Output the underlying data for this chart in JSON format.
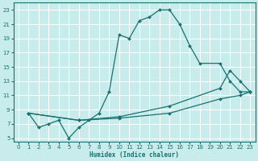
{
  "xlabel": "Humidex (Indice chaleur)",
  "bg_color": "#c8ecec",
  "line_color": "#1a7070",
  "grid_color": "#ffffff",
  "xlim": [
    -0.5,
    23.5
  ],
  "ylim": [
    4.5,
    24
  ],
  "yticks": [
    5,
    7,
    9,
    11,
    13,
    15,
    17,
    19,
    21,
    23
  ],
  "xticks": [
    0,
    1,
    2,
    3,
    4,
    5,
    6,
    7,
    8,
    9,
    10,
    11,
    12,
    13,
    14,
    15,
    16,
    17,
    18,
    19,
    20,
    21,
    22,
    23
  ],
  "line1_x": [
    1,
    2,
    3,
    4,
    5,
    6,
    7,
    8,
    9,
    10,
    11,
    12,
    13,
    14,
    15,
    16,
    17,
    18,
    20,
    21,
    22,
    23
  ],
  "line1_y": [
    8.5,
    6.5,
    7.0,
    7.5,
    5.0,
    6.5,
    7.5,
    8.5,
    11.5,
    19.5,
    19.0,
    21.5,
    22.0,
    23.0,
    23.0,
    21.0,
    18.0,
    15.5,
    15.5,
    13.0,
    11.5,
    11.5
  ],
  "line2_x": [
    1,
    6,
    10,
    15,
    20,
    21,
    22,
    23
  ],
  "line2_y": [
    8.5,
    7.5,
    8.0,
    9.5,
    12.0,
    14.5,
    13.0,
    11.5
  ],
  "line3_x": [
    1,
    6,
    10,
    15,
    20,
    22,
    23
  ],
  "line3_y": [
    8.5,
    7.5,
    7.8,
    8.5,
    10.5,
    11.0,
    11.5
  ]
}
